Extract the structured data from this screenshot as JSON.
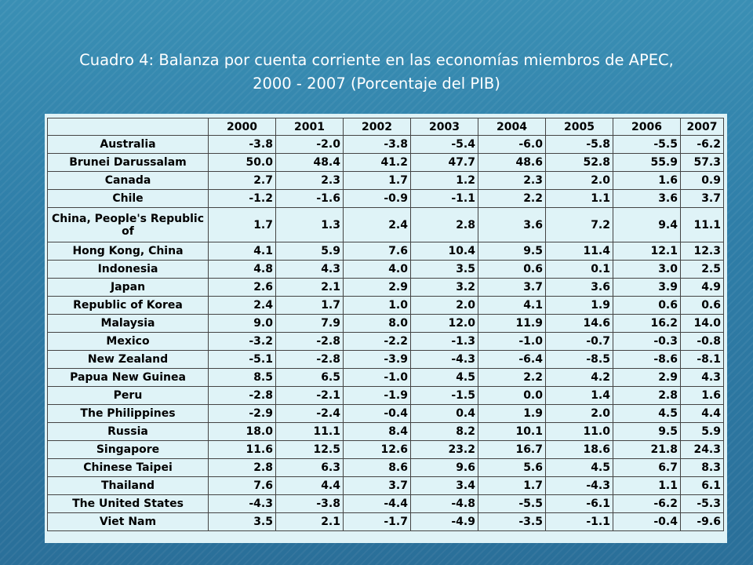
{
  "title_line1": "Cuadro 4: Balanza por cuenta corriente en las economías miembros de APEC,",
  "title_line2": "2000 - 2007 (Porcentaje del PIB)",
  "colors": {
    "background": "#2f7ea8",
    "panel": "#dff3f7",
    "text": "#000000"
  },
  "table": {
    "headers": [
      "",
      "2000",
      "2001",
      "2002",
      "2003",
      "2004",
      "2005",
      "2006",
      "2007"
    ],
    "rows": [
      {
        "country": "Australia",
        "values": [
          "-3.8",
          "-2.0",
          "-3.8",
          "-5.4",
          "-6.0",
          "-5.8",
          "-5.5",
          "-6.2"
        ]
      },
      {
        "country": "Brunei Darussalam",
        "values": [
          "50.0",
          "48.4",
          "41.2",
          "47.7",
          "48.6",
          "52.8",
          "55.9",
          "57.3"
        ]
      },
      {
        "country": "Canada",
        "values": [
          "2.7",
          "2.3",
          "1.7",
          "1.2",
          "2.3",
          "2.0",
          "1.6",
          "0.9"
        ]
      },
      {
        "country": "Chile",
        "values": [
          "-1.2",
          "-1.6",
          "-0.9",
          "-1.1",
          "2.2",
          "1.1",
          "3.6",
          "3.7"
        ]
      },
      {
        "country": "China, People's Republic of",
        "values": [
          "1.7",
          "1.3",
          "2.4",
          "2.8",
          "3.6",
          "7.2",
          "9.4",
          "11.1"
        ],
        "tall": true
      },
      {
        "country": "Hong Kong, China",
        "values": [
          "4.1",
          "5.9",
          "7.6",
          "10.4",
          "9.5",
          "11.4",
          "12.1",
          "12.3"
        ]
      },
      {
        "country": "Indonesia",
        "values": [
          "4.8",
          "4.3",
          "4.0",
          "3.5",
          "0.6",
          "0.1",
          "3.0",
          "2.5"
        ]
      },
      {
        "country": "Japan",
        "values": [
          "2.6",
          "2.1",
          "2.9",
          "3.2",
          "3.7",
          "3.6",
          "3.9",
          "4.9"
        ]
      },
      {
        "country": "Republic of Korea",
        "values": [
          "2.4",
          "1.7",
          "1.0",
          "2.0",
          "4.1",
          "1.9",
          "0.6",
          "0.6"
        ]
      },
      {
        "country": "Malaysia",
        "values": [
          "9.0",
          "7.9",
          "8.0",
          "12.0",
          "11.9",
          "14.6",
          "16.2",
          "14.0"
        ]
      },
      {
        "country": "Mexico",
        "values": [
          "-3.2",
          "-2.8",
          "-2.2",
          "-1.3",
          "-1.0",
          "-0.7",
          "-0.3",
          "-0.8"
        ]
      },
      {
        "country": "New Zealand",
        "values": [
          "-5.1",
          "-2.8",
          "-3.9",
          "-4.3",
          "-6.4",
          "-8.5",
          "-8.6",
          "-8.1"
        ]
      },
      {
        "country": "Papua New Guinea",
        "values": [
          "8.5",
          "6.5",
          "-1.0",
          "4.5",
          "2.2",
          "4.2",
          "2.9",
          "4.3"
        ]
      },
      {
        "country": "Peru",
        "values": [
          "-2.8",
          "-2.1",
          "-1.9",
          "-1.5",
          "0.0",
          "1.4",
          "2.8",
          "1.6"
        ]
      },
      {
        "country": "The Philippines",
        "values": [
          "-2.9",
          "-2.4",
          "-0.4",
          "0.4",
          "1.9",
          "2.0",
          "4.5",
          "4.4"
        ]
      },
      {
        "country": "Russia",
        "values": [
          "18.0",
          "11.1",
          "8.4",
          "8.2",
          "10.1",
          "11.0",
          "9.5",
          "5.9"
        ]
      },
      {
        "country": "Singapore",
        "values": [
          "11.6",
          "12.5",
          "12.6",
          "23.2",
          "16.7",
          "18.6",
          "21.8",
          "24.3"
        ]
      },
      {
        "country": "Chinese Taipei",
        "values": [
          "2.8",
          "6.3",
          "8.6",
          "9.6",
          "5.6",
          "4.5",
          "6.7",
          "8.3"
        ]
      },
      {
        "country": "Thailand",
        "values": [
          "7.6",
          "4.4",
          "3.7",
          "3.4",
          "1.7",
          "-4.3",
          "1.1",
          "6.1"
        ]
      },
      {
        "country": "The United States",
        "values": [
          "-4.3",
          "-3.8",
          "-4.4",
          "-4.8",
          "-5.5",
          "-6.1",
          "-6.2",
          "-5.3"
        ]
      },
      {
        "country": "Viet Nam",
        "values": [
          "3.5",
          "2.1",
          "-1.7",
          "-4.9",
          "-3.5",
          "-1.1",
          "-0.4",
          "-9.6"
        ]
      }
    ]
  }
}
